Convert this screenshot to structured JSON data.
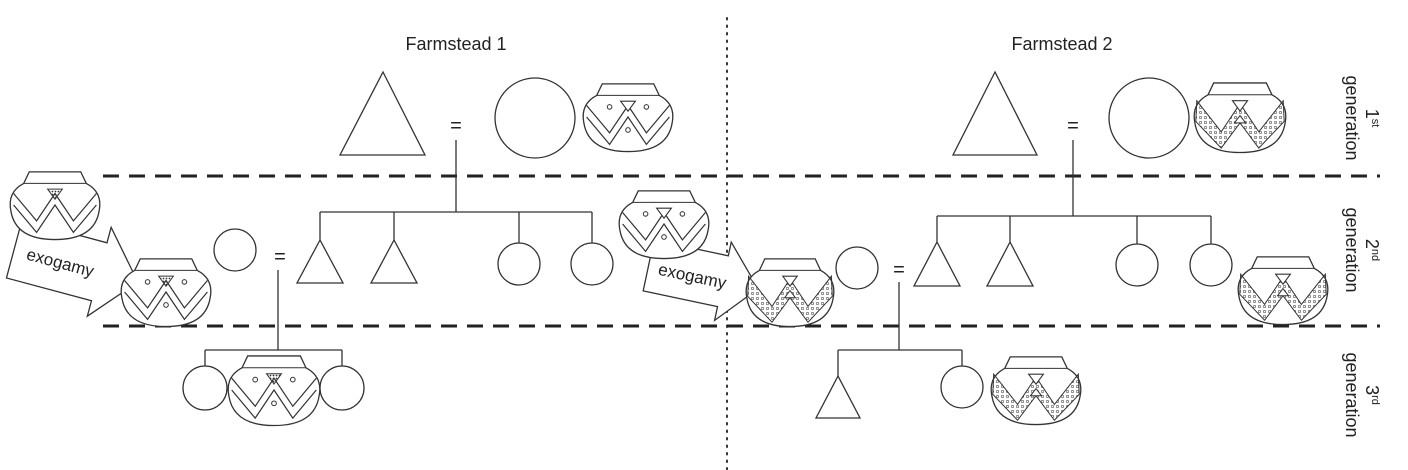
{
  "farmsteads": [
    {
      "title": "Farmstead 1"
    },
    {
      "title": "Farmstead 2"
    }
  ],
  "generations": [
    {
      "num": "1",
      "suffix": "st",
      "word": "generation"
    },
    {
      "num": "2",
      "suffix": "nd",
      "word": "generation"
    },
    {
      "num": "3",
      "suffix": "rd",
      "word": "generation"
    }
  ],
  "marriage_sign": "=",
  "exogamy_label": "exogamy",
  "colors": {
    "stroke": "#333333",
    "background": "#ffffff",
    "stipple": "#555555"
  }
}
